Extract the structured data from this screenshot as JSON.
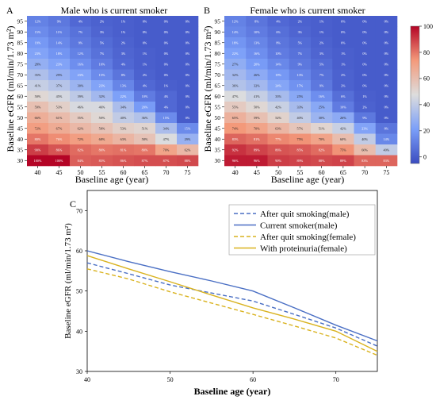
{
  "chart_data": [
    {
      "type": "heatmap",
      "panel_label": "A",
      "title": "Male who is current smoker",
      "xlabel": "Baseline age (year)",
      "ylabel": "Baseline eGFR (ml/min/1.73 m²)",
      "x": [
        "40",
        "45",
        "50",
        "55",
        "60",
        "65",
        "70",
        "75"
      ],
      "y": [
        "95",
        "90",
        "85",
        "80",
        "75",
        "70",
        "65",
        "60",
        "55",
        "50",
        "45",
        "40",
        "35",
        "30"
      ],
      "values": [
        [
          12,
          9,
          4,
          2,
          1,
          0,
          0,
          0
        ],
        [
          15,
          11,
          7,
          3,
          1,
          0,
          0,
          0
        ],
        [
          19,
          14,
          9,
          5,
          2,
          0,
          0,
          0
        ],
        [
          23,
          18,
          12,
          7,
          3,
          1,
          0,
          0
        ],
        [
          28,
          23,
          16,
          10,
          4,
          1,
          0,
          0
        ],
        [
          35,
          29,
          23,
          15,
          8,
          2,
          0,
          0
        ],
        [
          41,
          37,
          30,
          23,
          13,
          4,
          1,
          0
        ],
        [
          50,
          45,
          39,
          32,
          22,
          10,
          4,
          0
        ],
        [
          59,
          53,
          46,
          46,
          34,
          20,
          4,
          0
        ],
        [
          66,
          61,
          55,
          50,
          40,
          36,
          15,
          0
        ],
        [
          72,
          67,
          62,
          58,
          53,
          51,
          34,
          15
        ],
        [
          80,
          76,
          72,
          68,
          63,
          58,
          47,
          29
        ],
        [
          90,
          86,
          82,
          80,
          81,
          80,
          70,
          62
        ],
        [
          100,
          100,
          84,
          85,
          86,
          87,
          87,
          88
        ]
      ],
      "colorbar": {
        "ticks": [
          0,
          20,
          40,
          60,
          80,
          100
        ],
        "range": [
          -5,
          100
        ]
      }
    },
    {
      "type": "heatmap",
      "panel_label": "B",
      "title": "Female who is current smoker",
      "xlabel": "Baseline age (year)",
      "ylabel": "Baseline eGFR (ml/min/1.73 m²)",
      "x": [
        "40",
        "45",
        "50",
        "55",
        "60",
        "65",
        "70",
        "75"
      ],
      "y": [
        "95",
        "90",
        "85",
        "80",
        "75",
        "70",
        "65",
        "60",
        "55",
        "50",
        "45",
        "40",
        "35",
        "30"
      ],
      "values": [
        [
          12,
          8,
          4,
          2,
          1,
          0,
          0,
          0
        ],
        [
          14,
          10,
          6,
          3,
          1,
          0,
          0,
          0
        ],
        [
          18,
          13,
          8,
          5,
          2,
          0,
          0,
          0
        ],
        [
          22,
          16,
          10,
          7,
          3,
          1,
          0,
          0
        ],
        [
          27,
          20,
          14,
          9,
          5,
          1,
          0,
          0
        ],
        [
          32,
          26,
          19,
          13,
          7,
          2,
          0,
          0
        ],
        [
          36,
          32,
          24,
          17,
          9,
          2,
          0,
          0
        ],
        [
          47,
          41,
          33,
          25,
          16,
          6,
          1,
          0
        ],
        [
          55,
          50,
          42,
          33,
          25,
          10,
          2,
          0
        ],
        [
          65,
          59,
          52,
          40,
          30,
          26,
          9,
          0
        ],
        [
          74,
          70,
          63,
          57,
          51,
          42,
          23,
          8
        ],
        [
          83,
          81,
          77,
          75,
          70,
          60,
          40,
          14
        ],
        [
          92,
          89,
          86,
          85,
          82,
          75,
          60,
          40
        ],
        [
          96,
          96,
          90,
          89,
          88,
          89,
          83,
          83
        ]
      ],
      "colorbar": {
        "ticks": [
          0,
          20,
          40,
          60,
          80,
          100
        ],
        "range": [
          -5,
          100
        ]
      }
    },
    {
      "type": "line",
      "panel_label": "C",
      "xlabel": "Baseline age (year)",
      "ylabel": "Baseline eGFR (ml/min/1.73 m²)",
      "xlim": [
        40,
        75
      ],
      "ylim": [
        30,
        75
      ],
      "xticks": [
        40,
        50,
        60,
        70
      ],
      "yticks": [
        30,
        40,
        50,
        60,
        70
      ],
      "legend_position": "top-right",
      "x": [
        40,
        45,
        50,
        55,
        60,
        65,
        70,
        75
      ],
      "series": [
        {
          "name": "After quit smoking(male)",
          "color": "#4a6fc4",
          "style": "dashed",
          "values": [
            57.0,
            54.3,
            51.5,
            49.5,
            47.5,
            44.2,
            40.8,
            36.3
          ]
        },
        {
          "name": "Current smoker(male)",
          "color": "#4a6fc4",
          "style": "solid",
          "values": [
            60.0,
            57.3,
            54.8,
            52.5,
            50.0,
            45.8,
            41.5,
            37.6
          ]
        },
        {
          "name": "After quit smoking(female)",
          "color": "#d9b21e",
          "style": "dashed",
          "values": [
            55.5,
            53.0,
            49.8,
            47.0,
            44.2,
            41.3,
            38.3,
            34.0
          ]
        },
        {
          "name": "With proteinuria(female)",
          "color": "#d9b21e",
          "style": "solid",
          "values": [
            58.8,
            55.5,
            52.3,
            49.0,
            45.8,
            43.0,
            40.0,
            35.0
          ]
        }
      ]
    }
  ]
}
